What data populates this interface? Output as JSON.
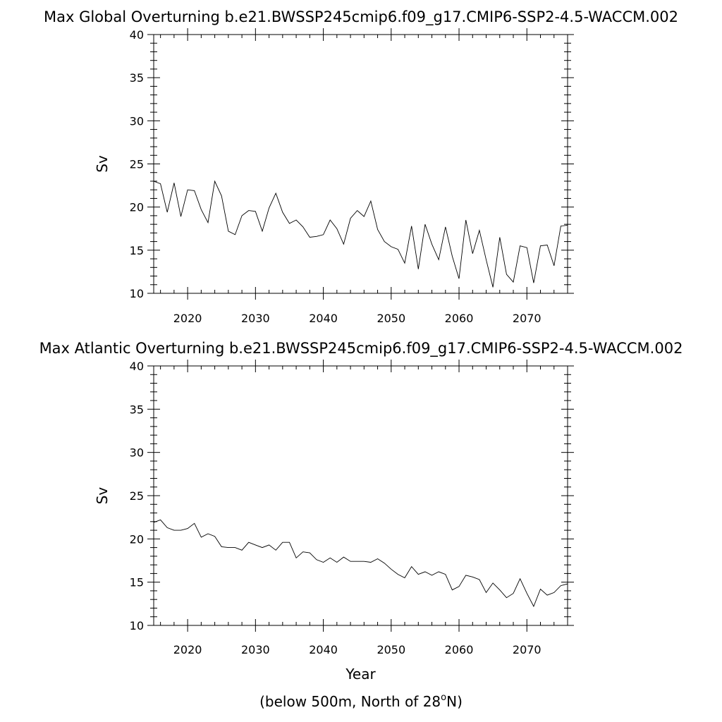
{
  "chart_data": [
    {
      "type": "line",
      "title": "Max Global Overturning b.e21.BWSSP245cmip6.f09_g17.CMIP6-SSP2-4.5-WACCM.002",
      "xlabel": "",
      "ylabel": "Sv",
      "xlim": [
        2015,
        2076
      ],
      "ylim": [
        10,
        40
      ],
      "xticks": [
        2020,
        2030,
        2040,
        2050,
        2060,
        2070
      ],
      "yticks": [
        10,
        15,
        20,
        25,
        30,
        35,
        40
      ],
      "grid": false,
      "series": [
        {
          "color": "#000000",
          "x": [
            2015,
            2016,
            2017,
            2018,
            2019,
            2020,
            2021,
            2022,
            2023,
            2024,
            2025,
            2026,
            2027,
            2028,
            2029,
            2030,
            2031,
            2032,
            2033,
            2034,
            2035,
            2036,
            2037,
            2038,
            2039,
            2040,
            2041,
            2042,
            2043,
            2044,
            2045,
            2046,
            2047,
            2048,
            2049,
            2050,
            2051,
            2052,
            2053,
            2054,
            2055,
            2056,
            2057,
            2058,
            2059,
            2060,
            2061,
            2062,
            2063,
            2064,
            2065,
            2066,
            2067,
            2068,
            2069,
            2070,
            2071,
            2072,
            2073,
            2074,
            2075,
            2076
          ],
          "y": [
            23.0,
            22.7,
            19.4,
            22.8,
            18.9,
            22.0,
            21.9,
            19.7,
            18.2,
            23.0,
            21.3,
            17.2,
            16.8,
            19.0,
            19.6,
            19.5,
            17.2,
            19.9,
            21.6,
            19.4,
            18.1,
            18.5,
            17.7,
            16.5,
            16.6,
            16.8,
            18.5,
            17.5,
            15.7,
            18.7,
            19.6,
            18.9,
            20.7,
            17.4,
            16.0,
            15.4,
            15.1,
            13.5,
            17.8,
            12.8,
            18.0,
            15.7,
            13.9,
            17.7,
            14.3,
            11.7,
            18.5,
            14.6,
            17.3,
            13.9,
            10.7,
            16.5,
            12.2,
            11.3,
            15.5,
            15.3,
            11.2,
            15.5,
            15.6,
            13.2,
            17.8,
            17.9
          ]
        }
      ]
    },
    {
      "type": "line",
      "title": "Max Atlantic Overturning b.e21.BWSSP245cmip6.f09_g17.CMIP6-SSP2-4.5-WACCM.002",
      "xlabel": "Year",
      "ylabel": "Sv",
      "xlim": [
        2015,
        2076
      ],
      "ylim": [
        10,
        40
      ],
      "xticks": [
        2020,
        2030,
        2040,
        2050,
        2060,
        2070
      ],
      "yticks": [
        10,
        15,
        20,
        25,
        30,
        35,
        40
      ],
      "grid": false,
      "series": [
        {
          "color": "#000000",
          "x": [
            2015,
            2016,
            2017,
            2018,
            2019,
            2020,
            2021,
            2022,
            2023,
            2024,
            2025,
            2026,
            2027,
            2028,
            2029,
            2030,
            2031,
            2032,
            2033,
            2034,
            2035,
            2036,
            2037,
            2038,
            2039,
            2040,
            2041,
            2042,
            2043,
            2044,
            2045,
            2046,
            2047,
            2048,
            2049,
            2050,
            2051,
            2052,
            2053,
            2054,
            2055,
            2056,
            2057,
            2058,
            2059,
            2060,
            2061,
            2062,
            2063,
            2064,
            2065,
            2066,
            2067,
            2068,
            2069,
            2070,
            2071,
            2072,
            2073,
            2074,
            2075,
            2076
          ],
          "y": [
            21.9,
            22.2,
            21.3,
            21.0,
            21.0,
            21.2,
            21.8,
            20.2,
            20.6,
            20.3,
            19.1,
            19.0,
            19.0,
            18.7,
            19.6,
            19.3,
            19.0,
            19.3,
            18.7,
            19.6,
            19.6,
            17.8,
            18.5,
            18.4,
            17.6,
            17.3,
            17.8,
            17.3,
            17.9,
            17.4,
            17.4,
            17.4,
            17.3,
            17.7,
            17.2,
            16.5,
            15.9,
            15.5,
            16.8,
            15.9,
            16.2,
            15.8,
            16.2,
            15.9,
            14.1,
            14.5,
            15.8,
            15.6,
            15.3,
            13.8,
            14.9,
            14.1,
            13.2,
            13.7,
            15.4,
            13.7,
            12.2,
            14.2,
            13.5,
            13.8,
            14.6,
            14.8
          ]
        }
      ]
    }
  ],
  "footnote": {
    "prefix": "(below 500m, North of 28",
    "superscript": "o",
    "suffix": "N)"
  }
}
